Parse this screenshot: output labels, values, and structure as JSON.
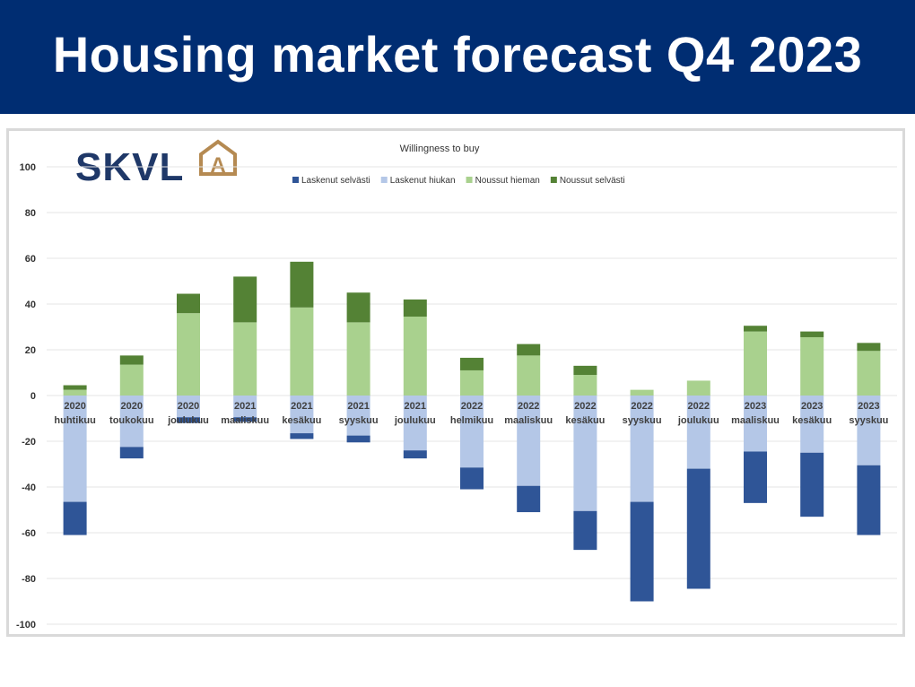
{
  "header": {
    "title": "Housing market forecast Q4 2023",
    "background_color": "#002d72"
  },
  "logo": {
    "text": "SKVL",
    "badge_letter": "A",
    "text_color": "#1f3868",
    "badge_color": "#b58a52"
  },
  "chart_data": {
    "type": "bar",
    "stacked": true,
    "title": "Willingness to buy",
    "xlabel": "",
    "ylabel": "",
    "ylim": [
      -100,
      100
    ],
    "yticks": [
      100,
      80,
      60,
      40,
      20,
      0,
      -20,
      -40,
      -60,
      -80,
      -100
    ],
    "grid": true,
    "legend_position": "top",
    "categories": [
      [
        "2020",
        "huhtikuu"
      ],
      [
        "2020",
        "toukokuu"
      ],
      [
        "2020",
        "joulukuu"
      ],
      [
        "2021",
        "maaliskuu"
      ],
      [
        "2021",
        "kesäkuu"
      ],
      [
        "2021",
        "syyskuu"
      ],
      [
        "2021",
        "joulukuu"
      ],
      [
        "2022",
        "helmikuu"
      ],
      [
        "2022",
        "maaliskuu"
      ],
      [
        "2022",
        "kesäkuu"
      ],
      [
        "2022",
        "syyskuu"
      ],
      [
        "2022",
        "joulukuu"
      ],
      [
        "2023",
        "maaliskuu"
      ],
      [
        "2023",
        "kesäkuu"
      ],
      [
        "2023",
        "syyskuu"
      ]
    ],
    "series": [
      {
        "name": "Laskenut selvästi",
        "color": "#2f5597",
        "values": [
          -14.5,
          -5,
          -2.5,
          -2,
          -2.5,
          -3,
          -3.5,
          -9.5,
          -11.5,
          -17,
          -43.5,
          -52.5,
          -22.5,
          -28,
          -30.5
        ]
      },
      {
        "name": "Laskenut hiukan",
        "color": "#b4c7e7",
        "values": [
          -46.5,
          -22.5,
          -9.5,
          -9.5,
          -16.5,
          -17.5,
          -24,
          -31.5,
          -39.5,
          -50.5,
          -46.5,
          -32,
          -24.5,
          -25,
          -30.5
        ]
      },
      {
        "name": "Noussut hieman",
        "color": "#a9d18e",
        "values": [
          2.5,
          13.5,
          36,
          32,
          38.5,
          32,
          34.5,
          11,
          17.5,
          9,
          2.5,
          6.5,
          28,
          25.5,
          19.5
        ]
      },
      {
        "name": "Noussut selvästi",
        "color": "#548235",
        "values": [
          2,
          4,
          8.5,
          20,
          20,
          13,
          7.5,
          5.5,
          5,
          4,
          0,
          0,
          2.5,
          2.5,
          3.5
        ]
      }
    ]
  }
}
